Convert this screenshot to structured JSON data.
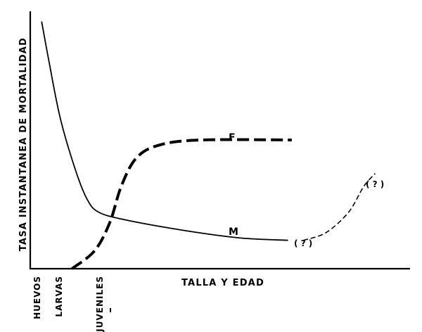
{
  "chart_data": {
    "type": "line",
    "ylabel": "TASA INSTANTANEA DE MORTALIDAD",
    "xlabel": "TALLA Y EDAD",
    "x_categories": [
      "HUEVOS",
      "LARVAS",
      "JUVENILES"
    ],
    "xlim": [
      0,
      100
    ],
    "ylim": [
      0,
      100
    ],
    "series": [
      {
        "name": "M",
        "style": "solid",
        "points": [
          [
            3,
            96
          ],
          [
            5,
            80
          ],
          [
            8,
            58
          ],
          [
            12,
            38
          ],
          [
            15,
            27
          ],
          [
            18,
            22
          ],
          [
            25,
            19
          ],
          [
            40,
            15
          ],
          [
            55,
            12
          ],
          [
            68,
            11
          ]
        ]
      },
      {
        "name": "F",
        "style": "dashed-thick",
        "points": [
          [
            11,
            0
          ],
          [
            17,
            7
          ],
          [
            21,
            18
          ],
          [
            24,
            32
          ],
          [
            28,
            43
          ],
          [
            34,
            48
          ],
          [
            45,
            50
          ],
          [
            69,
            50
          ]
        ]
      },
      {
        "name": "",
        "style": "dashed-thin",
        "points": [
          [
            72,
            11
          ],
          [
            78,
            14
          ],
          [
            84,
            22
          ],
          [
            88,
            32
          ],
          [
            91,
            37
          ]
        ]
      }
    ],
    "annotations": [
      {
        "text": "F"
      },
      {
        "text": "M"
      },
      {
        "text": "( ? )"
      },
      {
        "text": "( ? )"
      }
    ]
  }
}
